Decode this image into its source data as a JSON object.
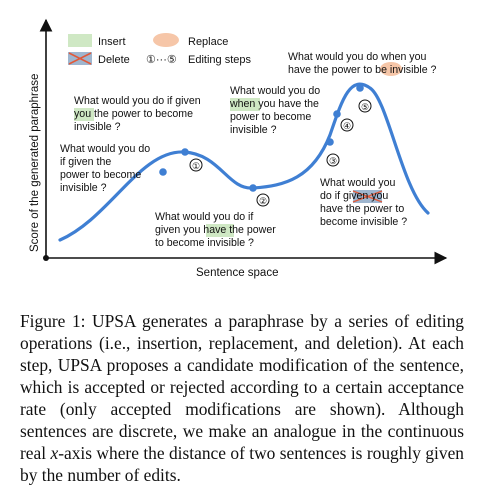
{
  "legend": {
    "insert_label": "Insert",
    "delete_label": "Delete",
    "replace_label": "Replace",
    "steps_prefix": "①···⑤",
    "steps_label": "Editing steps",
    "colors": {
      "insert": "#cfe8c4",
      "replace": "#f6c6a8",
      "delete": "#9fb6cf",
      "delete_cross": "#e05a3a"
    }
  },
  "axes": {
    "y_label": "Score of the generated paraphrase",
    "x_label": "Sentence space"
  },
  "curve_color": "#3f7fd3",
  "steps": [
    {
      "num": "①"
    },
    {
      "num": "②"
    },
    {
      "num": "③"
    },
    {
      "num": "④"
    },
    {
      "num": "⑤"
    }
  ],
  "sentences": {
    "s0": {
      "l1": "What would you do",
      "l2": "if given the",
      "l3": "power to become",
      "l4": "invisible ?"
    },
    "s1": {
      "l1": "What would you do if given",
      "l2_hl": "you",
      "l2_rest": " the power to become",
      "l3": "invisible ?"
    },
    "s2": {
      "l1": "What would you do if",
      "l2_pre": "given you ",
      "l2_hl": "have",
      "l2_post": " the power",
      "l3": "to become invisible ?"
    },
    "s3": {
      "l1": "What would you",
      "l2_pre": "do if ",
      "l2_del": "given",
      "l2_post": " you",
      "l3": "have the power to",
      "l4": "become invisible ?"
    },
    "s4": {
      "l1": "What would you do",
      "l2_hl": "when",
      "l2_rest": " you have the",
      "l3": "power to become",
      "l4": "invisible ?"
    },
    "s5": {
      "l1": "What would you do when you",
      "l2_pre": "have the power to ",
      "l2_hl": "be",
      "l2_post": " invisible ?"
    }
  },
  "caption": {
    "p1": "Figure 1: UPSA generates a paraphrase by a series of editing operations (i.e., insertion, replacement, and deletion). At each step, UPSA proposes a candidate modification of the sentence, which is accepted or rejected according to a certain acceptance rate (only accepted modifications are shown). Although sentences are discrete, we make an analogue in the continuous real ",
    "math_x": "x",
    "p2": "-axis where the distance of two sentences is roughly given by the number of edits."
  }
}
